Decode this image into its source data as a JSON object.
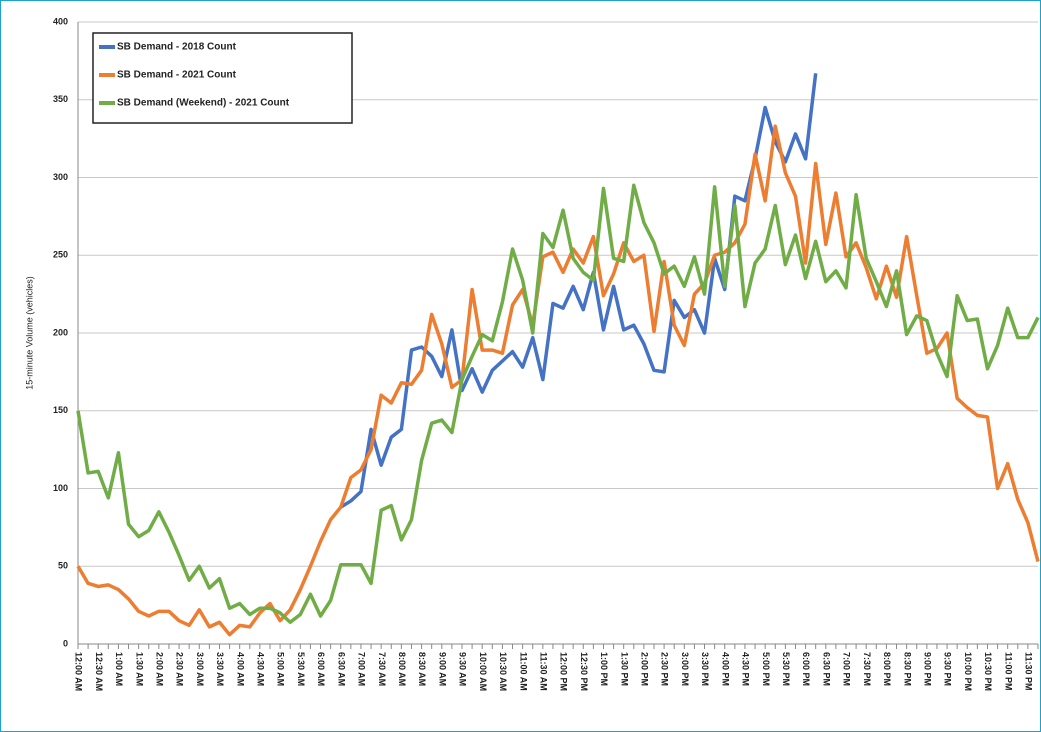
{
  "chart_data": {
    "type": "line",
    "y_label": "15-minute Volume (vehicles)",
    "categories": [
      "12:00 AM",
      null,
      "12:30 AM",
      null,
      "1:00 AM",
      null,
      "1:30 AM",
      null,
      "2:00 AM",
      null,
      "2:30 AM",
      null,
      "3:00 AM",
      null,
      "3:30 AM",
      null,
      "4:00 AM",
      null,
      "4:30 AM",
      null,
      "5:00 AM",
      null,
      "5:30 AM",
      null,
      "6:00 AM",
      null,
      "6:30 AM",
      null,
      "7:00 AM",
      null,
      "7:30 AM",
      null,
      "8:00 AM",
      null,
      "8:30 AM",
      null,
      "9:00 AM",
      null,
      "9:30 AM",
      null,
      "10:00 AM",
      null,
      "10:30 AM",
      null,
      "11:00 AM",
      null,
      "11:30 AM",
      null,
      "12:00 PM",
      null,
      "12:30 PM",
      null,
      "1:00 PM",
      null,
      "1:30 PM",
      null,
      "2:00 PM",
      null,
      "2:30 PM",
      null,
      "3:00 PM",
      null,
      "3:30 PM",
      null,
      "4:00 PM",
      null,
      "4:30 PM",
      null,
      "5:00 PM",
      null,
      "5:30 PM",
      null,
      "6:00 PM",
      null,
      "6:30 PM",
      null,
      "7:00 PM",
      null,
      "7:30 PM",
      null,
      "8:00 PM",
      null,
      "8:30 PM",
      null,
      "9:00 PM",
      null,
      "9:30 PM",
      null,
      "10:00 PM",
      null,
      "10:30 PM",
      null,
      "11:00 PM",
      null,
      "11:30 PM",
      null
    ],
    "series": [
      {
        "name": "SB Demand - 2018 Count",
        "color": "#4472c4",
        "values": [
          null,
          null,
          null,
          null,
          null,
          null,
          null,
          null,
          null,
          null,
          null,
          null,
          null,
          null,
          null,
          null,
          null,
          null,
          null,
          null,
          null,
          null,
          null,
          null,
          null,
          null,
          88,
          92,
          98,
          138,
          115,
          133,
          138,
          189,
          191,
          185,
          172,
          202,
          163,
          177,
          162,
          176,
          182,
          188,
          178,
          197,
          170,
          219,
          216,
          230,
          215,
          239,
          202,
          230,
          202,
          205,
          193,
          176,
          175,
          221,
          210,
          215,
          200,
          248,
          228,
          288,
          285,
          312,
          345,
          323,
          310,
          328,
          312,
          367,
          null,
          null,
          null,
          null,
          null,
          null,
          null,
          null,
          null,
          null,
          null,
          null,
          null,
          null,
          null,
          null,
          null,
          null,
          null,
          null,
          null,
          null
        ]
      },
      {
        "name": "SB Demand - 2021 Count",
        "color": "#ed7d31",
        "values": [
          50,
          39,
          37,
          38,
          35,
          29,
          21,
          18,
          21,
          21,
          15,
          12,
          22,
          11,
          14,
          6,
          12,
          11,
          20,
          26,
          15,
          22,
          35,
          50,
          66,
          80,
          88,
          107,
          112,
          125,
          160,
          155,
          168,
          167,
          176,
          212,
          193,
          165,
          170,
          228,
          189,
          189,
          187,
          218,
          228,
          205,
          249,
          252,
          239,
          254,
          245,
          262,
          224,
          238,
          258,
          246,
          250,
          201,
          246,
          205,
          192,
          225,
          232,
          250,
          252,
          258,
          270,
          315,
          285,
          333,
          303,
          288,
          245,
          309,
          257,
          290,
          249,
          258,
          242,
          222,
          243,
          223,
          262,
          224,
          187,
          190,
          200,
          158,
          152,
          147,
          146,
          100,
          116,
          93,
          78,
          53
        ]
      },
      {
        "name": "SB Demand (Weekend) - 2021 Count",
        "color": "#70ad47",
        "values": [
          150,
          110,
          111,
          94,
          123,
          77,
          69,
          73,
          85,
          72,
          57,
          41,
          50,
          36,
          42,
          23,
          26,
          19,
          23,
          23,
          20,
          14,
          19,
          32,
          18,
          28,
          51,
          51,
          51,
          39,
          86,
          89,
          67,
          80,
          118,
          142,
          144,
          136,
          170,
          185,
          199,
          195,
          220,
          254,
          234,
          200,
          264,
          255,
          279,
          248,
          239,
          234,
          293,
          248,
          246,
          295,
          271,
          258,
          238,
          243,
          230,
          249,
          225,
          294,
          230,
          282,
          217,
          245,
          254,
          282,
          244,
          263,
          235,
          259,
          233,
          240,
          229,
          289,
          248,
          233,
          217,
          240,
          199,
          211,
          208,
          187,
          172,
          224,
          208,
          209,
          177,
          192,
          216,
          197,
          197,
          210
        ]
      }
    ],
    "ylim": [
      0,
      400
    ],
    "yticks": [
      0,
      50,
      100,
      150,
      200,
      250,
      300,
      350,
      400
    ],
    "grid": true,
    "legend": "top-left"
  }
}
